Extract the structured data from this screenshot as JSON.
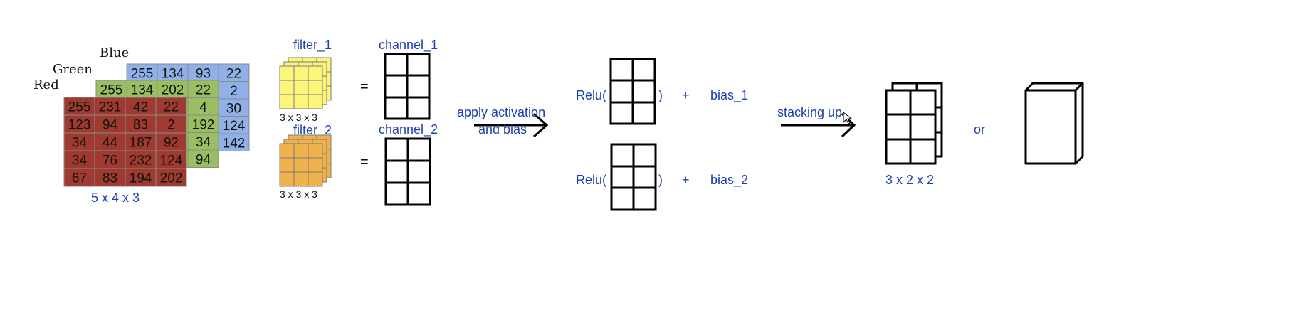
{
  "rgb_volume": {
    "layer_labels": {
      "blue": "Blue",
      "green": "Green",
      "red": "Red"
    },
    "blue_values": [
      [
        "255",
        "134",
        "93",
        "22"
      ],
      [
        "",
        "",
        "",
        "2"
      ],
      [
        "",
        "",
        "",
        "30"
      ],
      [
        "",
        "",
        "",
        "124"
      ],
      [
        "",
        "",
        "",
        "142"
      ]
    ],
    "green_values": [
      [
        "255",
        "134",
        "202",
        "22"
      ],
      [
        "",
        "",
        "",
        "4"
      ],
      [
        "",
        "",
        "",
        "192"
      ],
      [
        "",
        "",
        "",
        "34"
      ],
      [
        "",
        "",
        "",
        "94"
      ]
    ],
    "red_values": [
      [
        "255",
        "231",
        "42",
        "22"
      ],
      [
        "123",
        "94",
        "83",
        "2"
      ],
      [
        "34",
        "44",
        "187",
        "92"
      ],
      [
        "34",
        "76",
        "232",
        "124"
      ],
      [
        "67",
        "83",
        "194",
        "202"
      ]
    ],
    "caption": "5 x 4 x 3",
    "colors": {
      "blue": "#8fb1e8",
      "green": "#99bf62",
      "red": "#9e3a2f"
    }
  },
  "filters": [
    {
      "name": "filter_1",
      "size": "3 x 3 x 3",
      "color": "#fbf57a",
      "equals": "=",
      "output": "channel_1"
    },
    {
      "name": "filter_2",
      "size": "3 x 3 x 3",
      "color": "#efb24c",
      "equals": "=",
      "output": "channel_2"
    }
  ],
  "step1": {
    "line1": "apply activation",
    "line2": "and bias"
  },
  "activations": [
    {
      "open": "Relu(",
      "close": ")",
      "plus": "+",
      "bias": "bias_1"
    },
    {
      "open": "Relu(",
      "close": ")",
      "plus": "+",
      "bias": "bias_2"
    }
  ],
  "step2": {
    "label": "stacking up"
  },
  "result": {
    "caption": "3 x 2 x 2",
    "or_label": "or"
  },
  "text_color": "#1f3fb0"
}
